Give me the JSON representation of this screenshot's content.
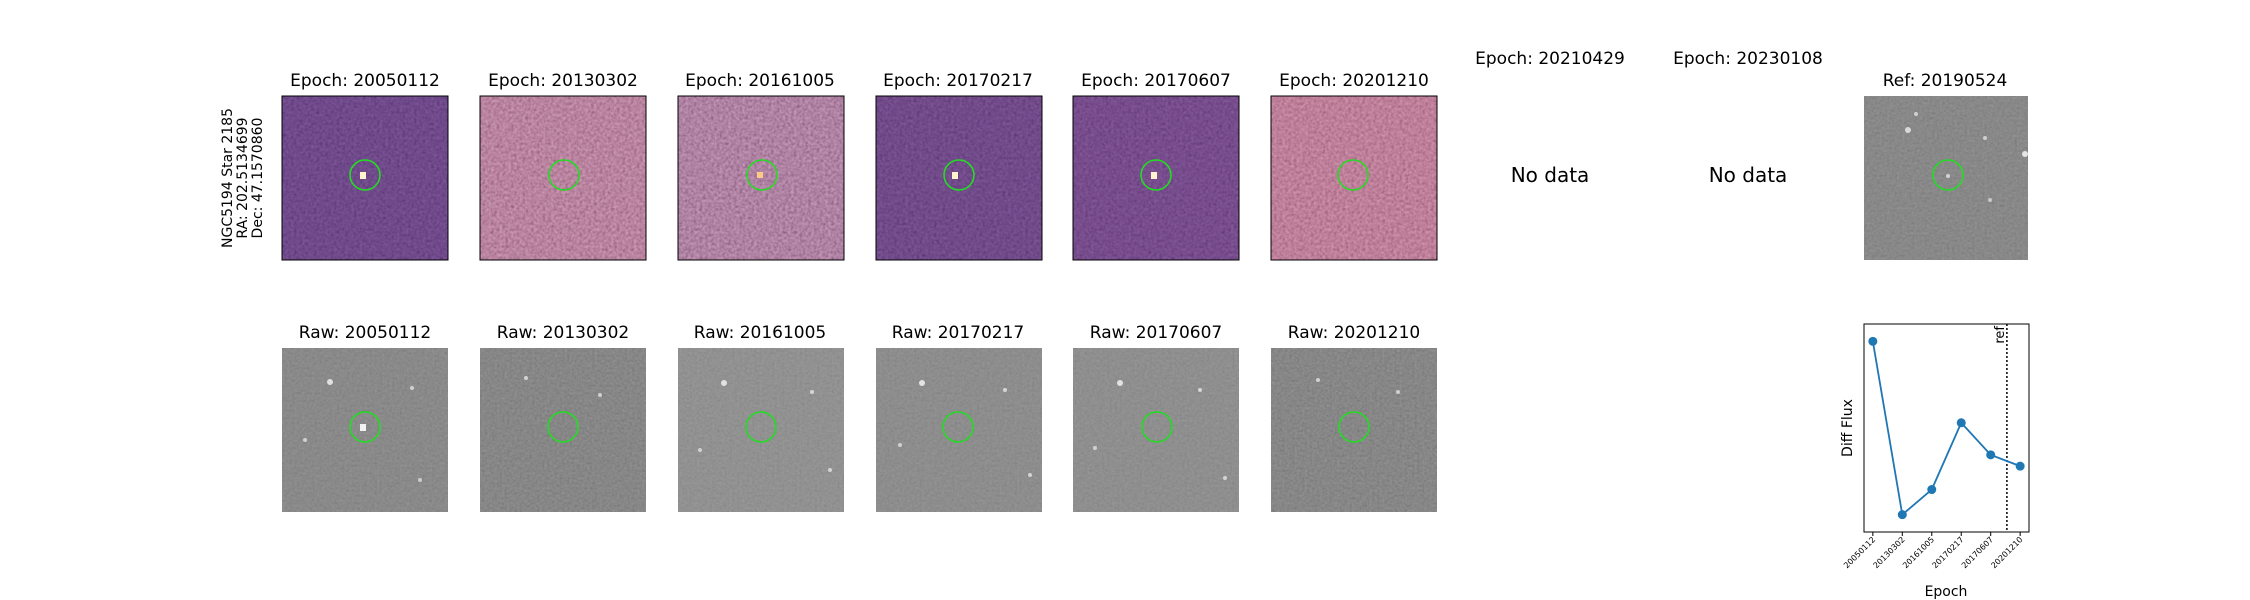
{
  "star_label": {
    "line1": "NGC5194 Star 2185",
    "line2": "RA: 202.5134699",
    "line3": "Dec: 47.1570860"
  },
  "diff_panels": [
    {
      "title": "Epoch: 20050112",
      "has_data": true
    },
    {
      "title": "Epoch: 20130302",
      "has_data": true
    },
    {
      "title": "Epoch: 20161005",
      "has_data": true
    },
    {
      "title": "Epoch: 20170217",
      "has_data": true
    },
    {
      "title": "Epoch: 20170607",
      "has_data": true
    },
    {
      "title": "Epoch: 20201210",
      "has_data": true
    },
    {
      "title": "Epoch: 20210429",
      "has_data": false,
      "message": "No data"
    },
    {
      "title": "Epoch: 20230108",
      "has_data": false,
      "message": "No data"
    }
  ],
  "ref_panel": {
    "title": "Ref: 20190524"
  },
  "raw_panels": [
    {
      "title": "Raw: 20050112"
    },
    {
      "title": "Raw: 20130302"
    },
    {
      "title": "Raw: 20161005"
    },
    {
      "title": "Raw: 20170217"
    },
    {
      "title": "Raw: 20170607"
    },
    {
      "title": "Raw: 20201210"
    }
  ],
  "colors": {
    "aperture": "#22dd22",
    "line": "#1f77b4",
    "magma_dark": "#3b0f70",
    "magma_mid": "#8c2981",
    "magma_light": "#de4968",
    "magma_bright": "#fe9f6d"
  },
  "chart_data": {
    "type": "line",
    "title": "",
    "xlabel": "Epoch",
    "ylabel": "Diff Flux",
    "x": [
      0,
      1,
      2,
      3,
      4,
      5
    ],
    "categories": [
      "20050112",
      "20130302",
      "20161005",
      "20170217",
      "20170607",
      "20201210"
    ],
    "values": [
      1.0,
      0.0,
      0.145,
      0.53,
      0.345,
      0.28
    ],
    "ylim": [
      -0.1,
      1.1
    ],
    "xlim": [
      -0.3,
      5.3
    ],
    "ref_line": {
      "x": 4.55,
      "label": "ref",
      "style": "dotted"
    },
    "y_ticks_shown": false,
    "grid": false
  }
}
